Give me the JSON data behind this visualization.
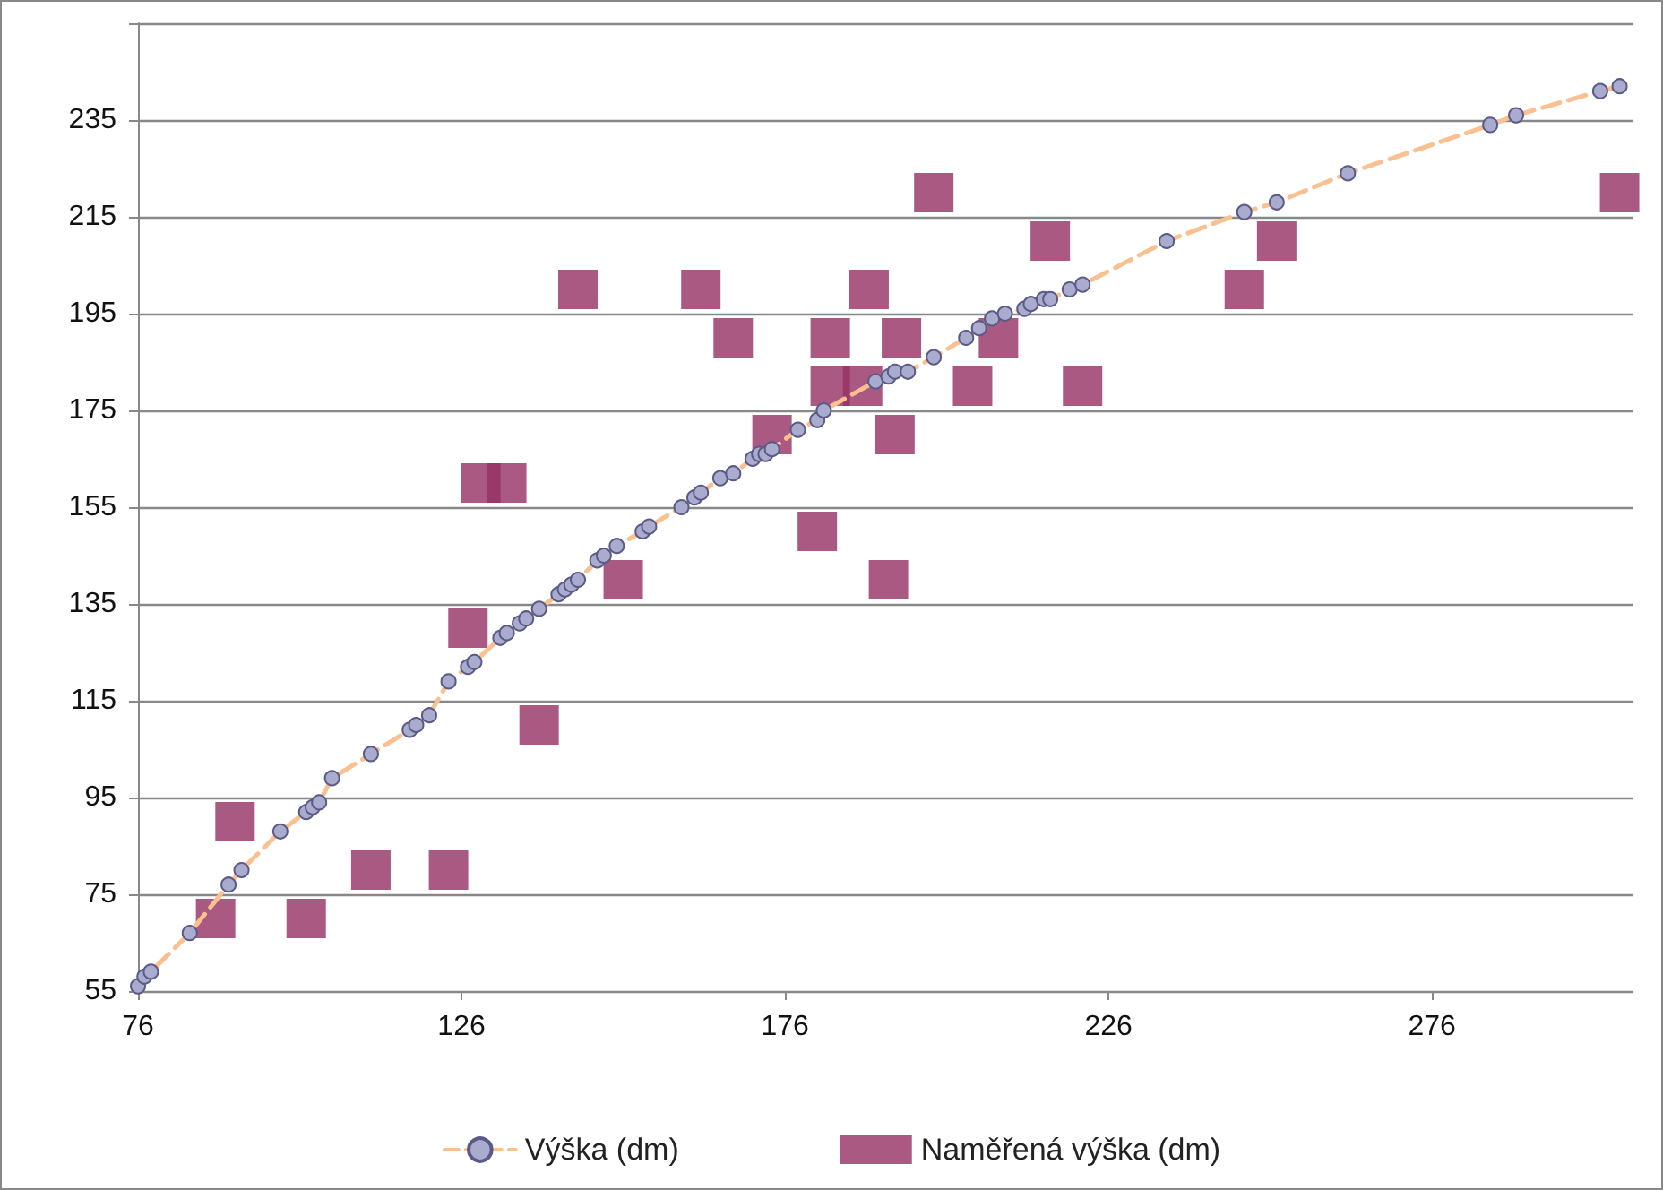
{
  "chart_data": {
    "type": "scatter",
    "xlim": [
      76,
      307
    ],
    "xticks": [
      76,
      126,
      176,
      226,
      276
    ],
    "ylim": [
      55,
      255
    ],
    "yticks": [
      55,
      75,
      95,
      115,
      135,
      155,
      175,
      195,
      215,
      235,
      {
        "value": 255,
        "label": null
      }
    ],
    "grid": "y",
    "legend": "bottom",
    "series": [
      {
        "name": "Výška (dm)",
        "type": "line",
        "marker": "circle",
        "line_style": "dashed",
        "color": "#fac090",
        "x": [
          76,
          77,
          78,
          84,
          90,
          92,
          98,
          102,
          103,
          104,
          106,
          112,
          118,
          119,
          121,
          124,
          127,
          128,
          132,
          133,
          135,
          136,
          138,
          141,
          142,
          143,
          144,
          147,
          148,
          150,
          154,
          155,
          160,
          162,
          163,
          166,
          168,
          171,
          172,
          173,
          174,
          178,
          181,
          182,
          190,
          192,
          193,
          195,
          199,
          204,
          206,
          208,
          210,
          213,
          214,
          216,
          217,
          220,
          222,
          235,
          247,
          252,
          263,
          285,
          289,
          302,
          305
        ],
        "values": [
          56,
          58,
          59,
          67,
          77,
          80,
          88,
          92,
          93,
          94,
          99,
          104,
          109,
          110,
          112,
          119,
          122,
          123,
          128,
          129,
          131,
          132,
          134,
          137,
          138,
          139,
          140,
          144,
          145,
          147,
          150,
          151,
          155,
          157,
          158,
          161,
          162,
          165,
          166,
          166,
          167,
          171,
          173,
          175,
          181,
          182,
          183,
          183,
          186,
          190,
          192,
          194,
          195,
          196,
          197,
          198,
          198,
          200,
          201,
          210,
          216,
          218,
          224,
          234,
          236,
          241,
          242
        ]
      },
      {
        "name": "Naměřená výška (dm)",
        "marker": "square",
        "color": "#953163",
        "x": [
          88,
          91,
          102,
          112,
          124,
          127,
          129,
          133,
          138,
          144,
          151,
          163,
          168,
          174,
          181,
          183,
          183,
          188,
          189,
          192,
          193,
          194,
          199,
          205,
          209,
          217,
          222,
          247,
          252,
          305
        ],
        "values": [
          70,
          90,
          70,
          80,
          80,
          130,
          160,
          160,
          110,
          200,
          140,
          200,
          190,
          170,
          150,
          180,
          190,
          180,
          200,
          140,
          170,
          190,
          220,
          180,
          190,
          210,
          180,
          200,
          210,
          220
        ]
      }
    ]
  }
}
